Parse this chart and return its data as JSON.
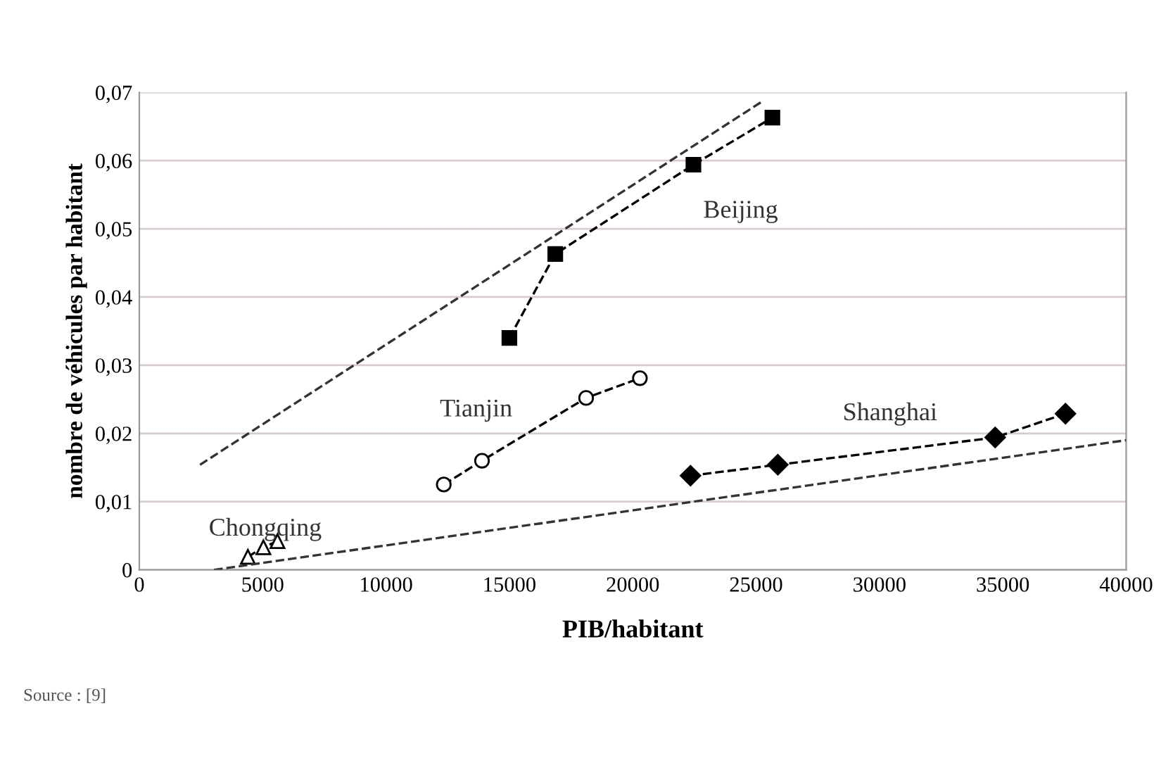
{
  "chart_data": {
    "type": "line",
    "xlabel": "PIB/habitant",
    "ylabel": "nombre de véhicules par habitant",
    "xlim": [
      0,
      40000
    ],
    "xticks": [
      0,
      5000,
      10000,
      15000,
      20000,
      25000,
      30000,
      35000,
      40000
    ],
    "ylim": [
      0,
      0.07
    ],
    "yticks": [
      {
        "value": 0,
        "label": "0"
      },
      {
        "value": 0.01,
        "label": "0,01"
      },
      {
        "value": 0.02,
        "label": "0,02"
      },
      {
        "value": 0.03,
        "label": "0,03"
      },
      {
        "value": 0.04,
        "label": "0,04"
      },
      {
        "value": 0.05,
        "label": "0,05"
      },
      {
        "value": 0.06,
        "label": "0,06"
      },
      {
        "value": 0.07,
        "label": "0,07"
      }
    ],
    "grid": "y",
    "series": [
      {
        "name": "Beijing",
        "color": "#000000",
        "marker": "square",
        "line_style": "dashed",
        "x": [
          15000,
          16860,
          22460,
          25660
        ],
        "values": [
          0.034,
          0.0463,
          0.0594,
          0.0663
        ]
      },
      {
        "name": "Tianjin",
        "color": "#000000",
        "marker": "circle",
        "line_style": "dashed",
        "x": [
          12340,
          13890,
          18110,
          20290
        ],
        "values": [
          0.0125,
          0.016,
          0.0252,
          0.0281
        ]
      },
      {
        "name": "Shanghai",
        "color": "#000000",
        "marker": "diamond",
        "line_style": "dashed",
        "x": [
          22340,
          25880,
          34690,
          37540
        ],
        "values": [
          0.0138,
          0.0154,
          0.0194,
          0.0229
        ]
      },
      {
        "name": "Chongqing",
        "color": "#000000",
        "marker": "triangle",
        "line_style": "dashed",
        "x": [
          4400,
          5030,
          5600
        ],
        "values": [
          0.0019,
          0.0033,
          0.0042
        ]
      },
      {
        "color": "#333333",
        "marker": "none",
        "line_style": "dashed",
        "x": [
          2460,
          25300
        ],
        "values": [
          0.0154,
          0.0688
        ]
      },
      {
        "color": "#333333",
        "marker": "none",
        "line_style": "dashed",
        "x": [
          3030,
          40000
        ],
        "values": [
          0,
          0.019
        ]
      }
    ],
    "annotations": [
      "Source : [9]"
    ]
  }
}
